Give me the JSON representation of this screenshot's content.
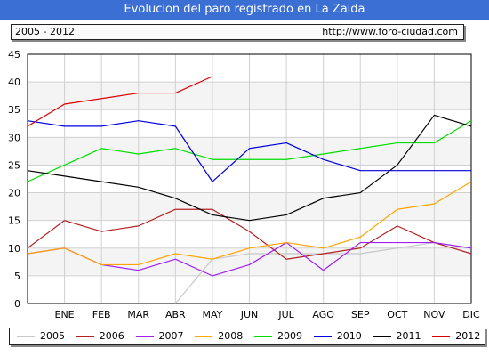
{
  "header": {
    "title": "Evolucion del paro registrado en La Zaida",
    "range": "2005 - 2012",
    "url": "http://www.foro-ciudad.com"
  },
  "chart_data": {
    "type": "line",
    "categories": [
      "",
      "ENE",
      "FEB",
      "MAR",
      "ABR",
      "MAY",
      "JUN",
      "JUL",
      "AGO",
      "SEP",
      "OCT",
      "NOV",
      "DIC"
    ],
    "ylim": [
      0,
      45
    ],
    "yticks": [
      0,
      5,
      10,
      15,
      20,
      25,
      30,
      35,
      40,
      45
    ],
    "grid": true,
    "legend_placement": "bottom",
    "series": [
      {
        "name": "2005",
        "color": "#c8c8c8",
        "values": [
          null,
          null,
          null,
          null,
          0,
          8,
          9,
          9,
          9,
          9,
          10,
          11,
          10
        ]
      },
      {
        "name": "2006",
        "color": "#b22222",
        "values": [
          10,
          15,
          13,
          14,
          17,
          17,
          13,
          8,
          9,
          10,
          14,
          11,
          9
        ]
      },
      {
        "name": "2007",
        "color": "#a020f0",
        "values": [
          9,
          10,
          7,
          6,
          8,
          5,
          7,
          11,
          6,
          11,
          11,
          11,
          10
        ]
      },
      {
        "name": "2008",
        "color": "#ffa500",
        "values": [
          9,
          10,
          7,
          7,
          9,
          8,
          10,
          11,
          10,
          12,
          17,
          18,
          22
        ]
      },
      {
        "name": "2009",
        "color": "#00dd00",
        "values": [
          22,
          25,
          28,
          27,
          28,
          26,
          26,
          26,
          27,
          28,
          29,
          29,
          33
        ]
      },
      {
        "name": "2010",
        "color": "#0000dd",
        "values": [
          33,
          32,
          32,
          33,
          32,
          22,
          28,
          29,
          26,
          24,
          24,
          24,
          24
        ]
      },
      {
        "name": "2011",
        "color": "#000000",
        "values": [
          24,
          23,
          22,
          21,
          19,
          16,
          15,
          16,
          19,
          20,
          25,
          34,
          32
        ]
      },
      {
        "name": "2012",
        "color": "#dd0000",
        "values": [
          32,
          36,
          37,
          38,
          38,
          41,
          null,
          null,
          null,
          null,
          null,
          null,
          null
        ]
      }
    ]
  }
}
